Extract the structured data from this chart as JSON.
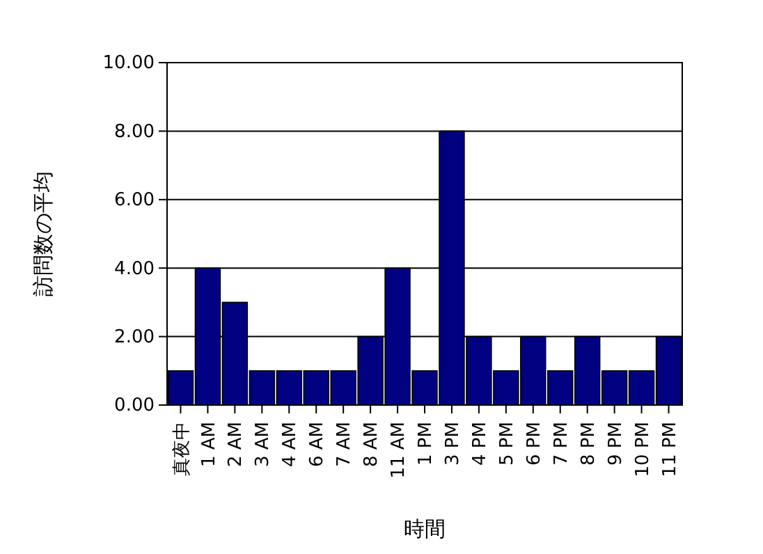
{
  "chart_data": {
    "type": "bar",
    "xlabel": "時間",
    "ylabel": "訪問数の平均",
    "categories": [
      "真夜中",
      "1 AM",
      "2 AM",
      "3 AM",
      "4 AM",
      "6 AM",
      "7 AM",
      "8 AM",
      "11 AM",
      "1 PM",
      "3 PM",
      "4 PM",
      "5 PM",
      "6 PM",
      "7 PM",
      "8 PM",
      "9 PM",
      "10 PM",
      "11 PM"
    ],
    "values": [
      1,
      4,
      3,
      1,
      1,
      1,
      1,
      2,
      4,
      1,
      8,
      2,
      1,
      2,
      1,
      2,
      1,
      1,
      2
    ],
    "color": "#000080",
    "ylim": [
      0,
      10
    ],
    "yticks": [
      {
        "value": 0,
        "label": "0.00"
      },
      {
        "value": 2,
        "label": "2.00"
      },
      {
        "value": 4,
        "label": "4.00"
      },
      {
        "value": 6,
        "label": "6.00"
      },
      {
        "value": 8,
        "label": "8.00"
      },
      {
        "value": 10,
        "label": "10.00"
      }
    ],
    "grid": "y"
  }
}
